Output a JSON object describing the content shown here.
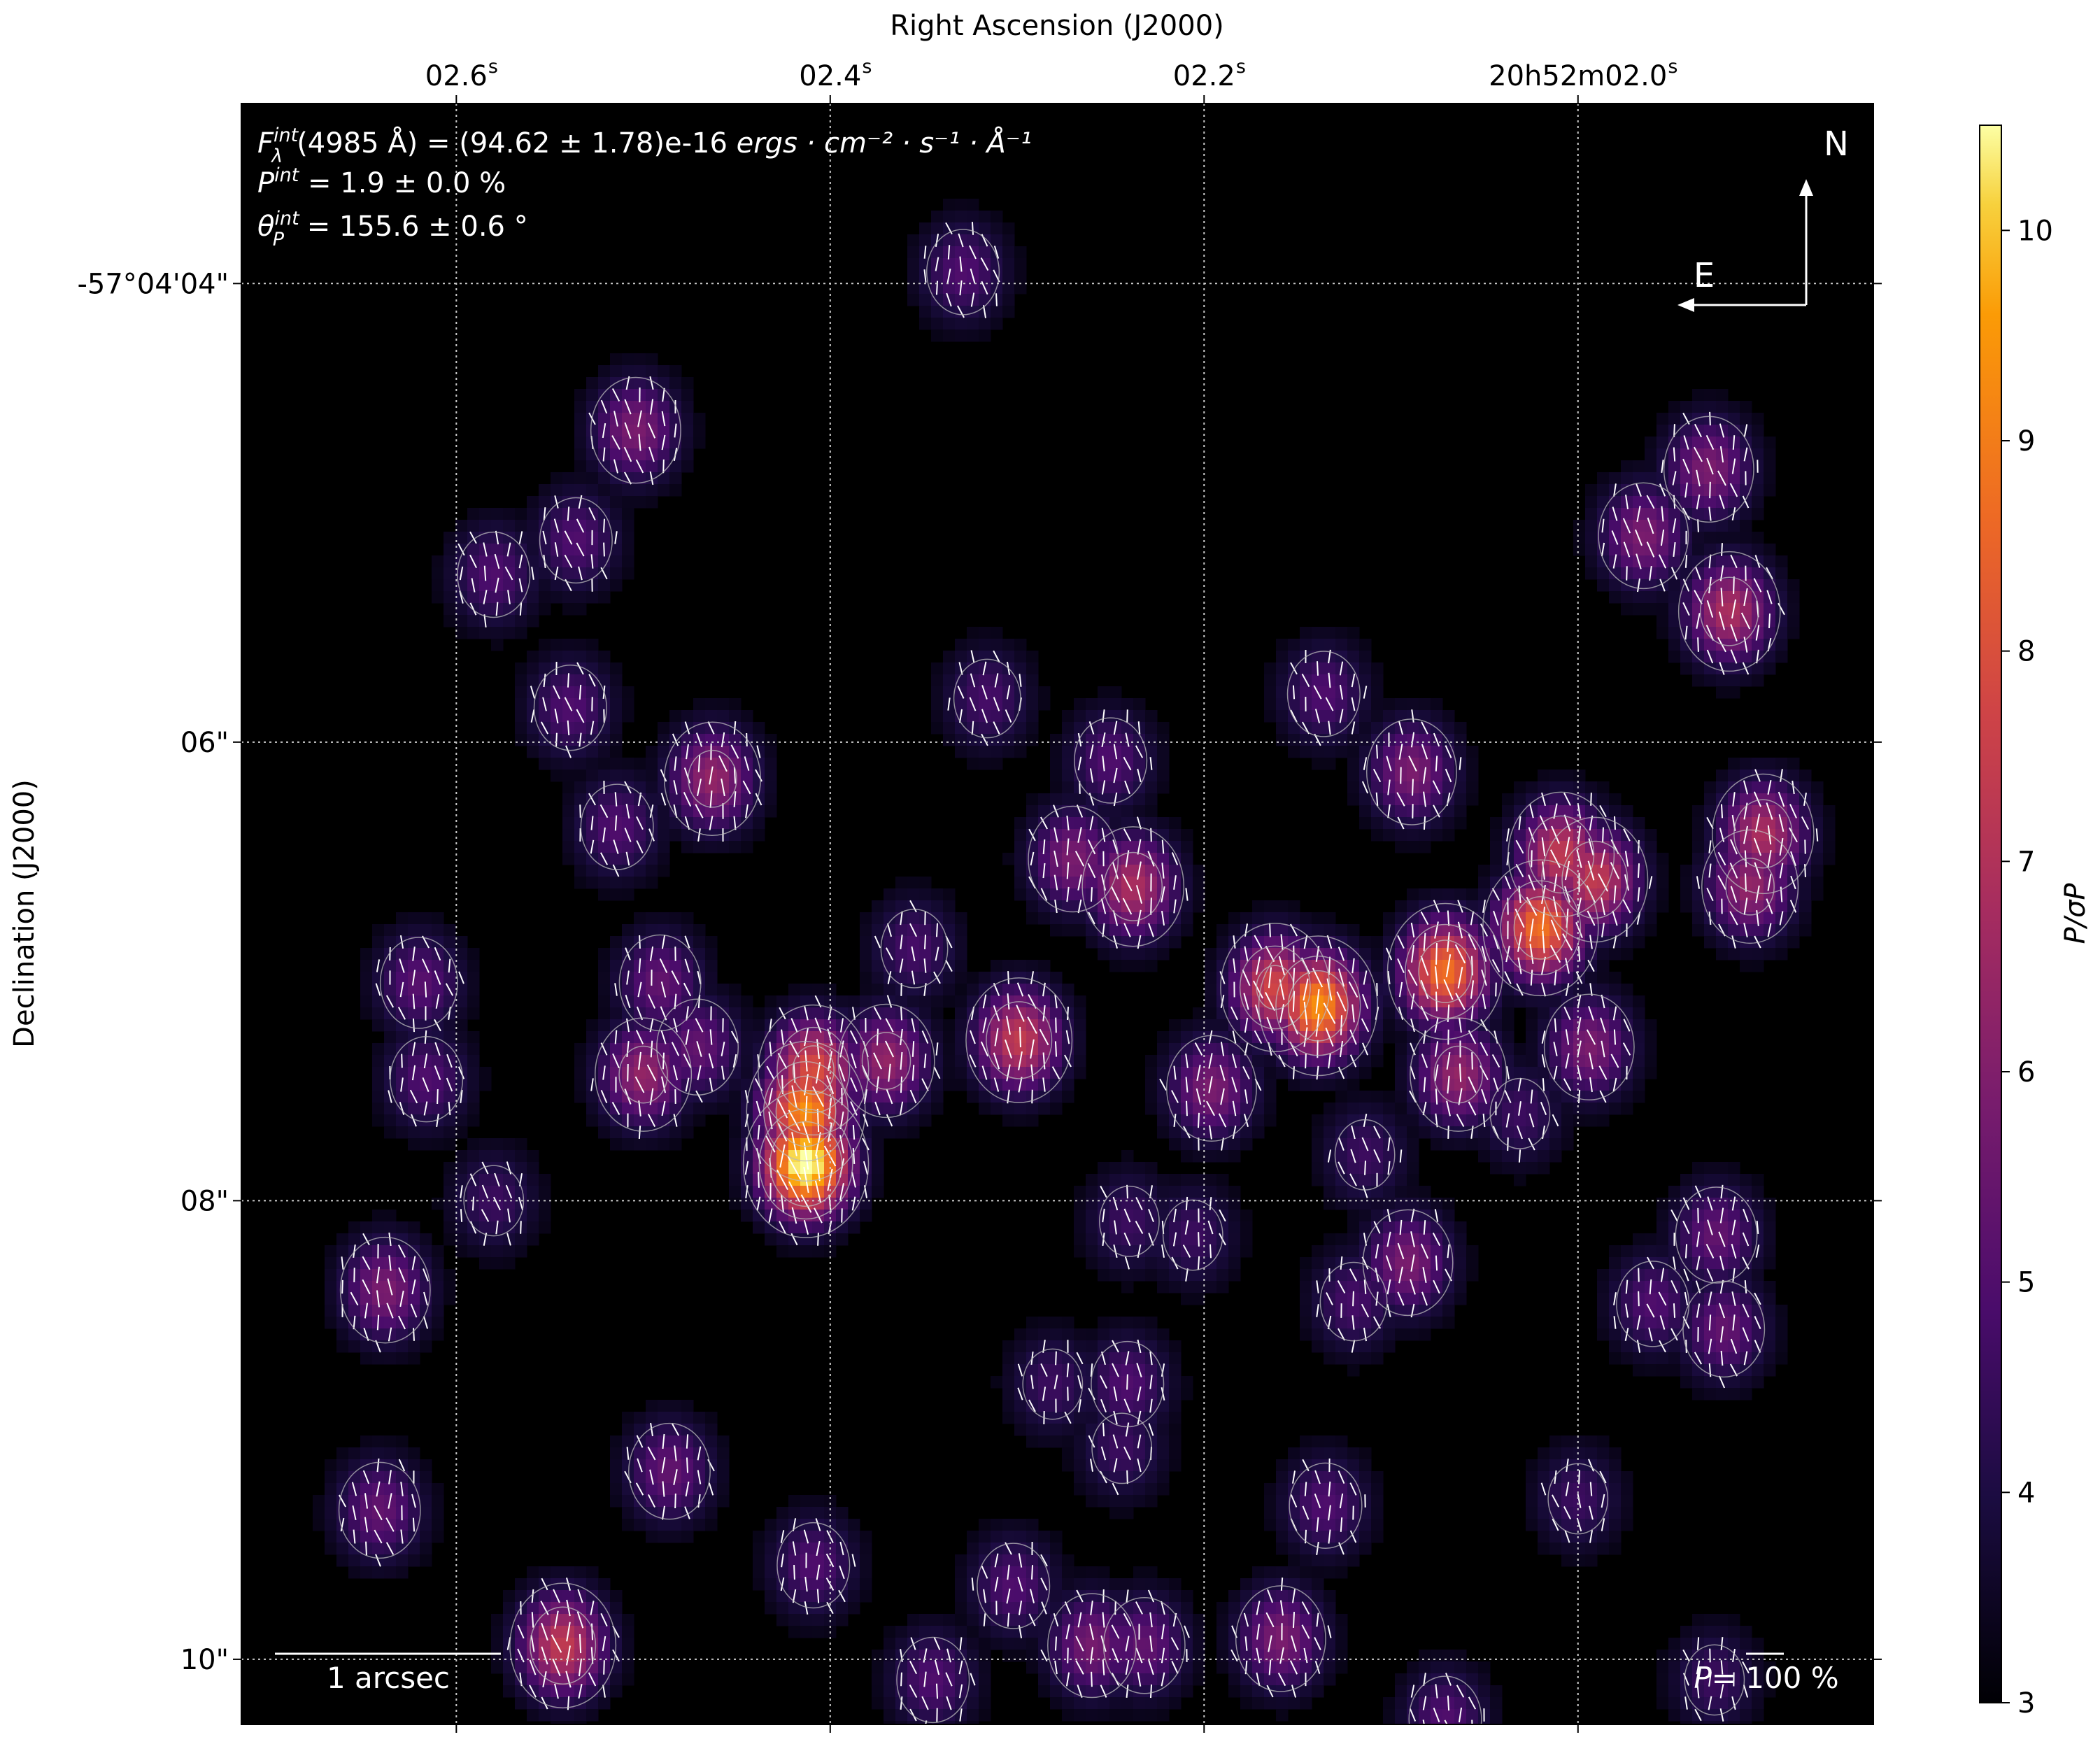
{
  "chart_data": {
    "type": "heatmap",
    "xlabel": "Right Ascension (J2000)",
    "ylabel": "Declination (J2000)",
    "x_ticks": [
      {
        "value": 2.6,
        "label": "02.6",
        "sup": "s"
      },
      {
        "value": 2.4,
        "label": "02.4",
        "sup": "s"
      },
      {
        "value": 2.2,
        "label": "02.2",
        "sup": "s"
      },
      {
        "value": 2.0,
        "label": "20h52m02.0",
        "sup": "s"
      }
    ],
    "y_ticks": [
      {
        "value": 4,
        "label": "-57°04'04\""
      },
      {
        "value": 6,
        "label": "06\""
      },
      {
        "value": 8,
        "label": "08\""
      },
      {
        "value": 10,
        "label": "10\""
      }
    ],
    "xlim": [
      2.715,
      1.842
    ],
    "ylim": [
      3.215,
      10.284
    ],
    "grid": true,
    "colorbar": {
      "label": "P/σP",
      "colormap": "inferno",
      "range": [
        3,
        10.5
      ],
      "ticks": [
        "3",
        "4",
        "5",
        "6",
        "7",
        "8",
        "9",
        "10"
      ]
    },
    "peaks_ra_s_dec_arcsec_snr": [
      [
        2.413,
        7.84,
        10.5
      ],
      [
        2.413,
        7.61,
        9.0
      ],
      [
        2.409,
        7.43,
        7.6
      ],
      [
        2.139,
        7.15,
        9.0
      ],
      [
        2.071,
        7.0,
        8.4
      ],
      [
        2.02,
        6.81,
        8.4
      ],
      [
        2.009,
        6.49,
        7.0
      ],
      [
        1.991,
        6.6,
        7.0
      ],
      [
        2.162,
        7.07,
        7.4
      ],
      [
        2.299,
        7.3,
        7.0
      ],
      [
        2.238,
        6.63,
        6.5
      ],
      [
        2.27,
        6.51,
        5.5
      ],
      [
        2.37,
        7.39,
        6.0
      ],
      [
        2.504,
        4.64,
        5.5
      ],
      [
        2.463,
        6.16,
        6.0
      ],
      [
        1.919,
        5.43,
        6.5
      ],
      [
        1.908,
        6.63,
        6.0
      ],
      [
        1.901,
        6.4,
        6.5
      ],
      [
        2.5,
        7.45,
        6.0
      ],
      [
        2.543,
        9.94,
        7.0
      ],
      [
        2.064,
        7.45,
        6.0
      ],
      [
        2.196,
        7.51,
        5.5
      ],
      [
        1.994,
        7.33,
        5.5
      ],
      [
        2.089,
        6.13,
        5.5
      ],
      [
        2.638,
        8.39,
        5.5
      ],
      [
        1.93,
        4.81,
        5.5
      ],
      [
        1.965,
        5.1,
        5.5
      ],
      [
        2.159,
        9.91,
        5.5
      ],
      [
        2.091,
        8.27,
        5.5
      ],
      [
        1.926,
        8.15,
        5.0
      ],
      [
        1.922,
        8.56,
        5.0
      ],
      [
        2.471,
        7.33,
        5.0
      ],
      [
        2.491,
        7.05,
        5.0
      ],
      [
        2.514,
        6.37,
        4.6
      ],
      [
        2.62,
        7.05,
        4.8
      ],
      [
        2.486,
        9.18,
        5.0
      ],
      [
        2.26,
        9.94,
        5.4
      ],
      [
        2.232,
        9.94,
        5.0
      ],
      [
        2.345,
        10.09,
        4.6
      ],
      [
        2.409,
        9.59,
        4.6
      ],
      [
        2.302,
        9.68,
        4.6
      ],
      [
        2.641,
        9.35,
        5.0
      ],
      [
        2.536,
        5.12,
        4.6
      ],
      [
        2.58,
        5.27,
        4.6
      ],
      [
        2.539,
        5.85,
        4.6
      ],
      [
        2.616,
        7.47,
        4.6
      ],
      [
        2.329,
        3.95,
        4.6
      ],
      [
        2.136,
        5.79,
        4.6
      ],
      [
        2.25,
        6.08,
        4.6
      ],
      [
        2.071,
        10.26,
        4.6
      ],
      [
        2.316,
        5.81,
        4.4
      ],
      [
        2.114,
        7.8,
        4.2
      ],
      [
        2.135,
        9.33,
        4.6
      ],
      [
        2.241,
        8.8,
        4.6
      ],
      [
        2.281,
        8.8,
        4.2
      ],
      [
        1.96,
        8.45,
        4.6
      ],
      [
        1.927,
        10.09,
        4.2
      ],
      [
        2.244,
        9.08,
        4.2
      ],
      [
        2.24,
        8.09,
        4.2
      ],
      [
        2.58,
        8.0,
        4.2
      ],
      [
        2.355,
        6.9,
        4.4
      ],
      [
        2.206,
        8.15,
        4.2
      ],
      [
        2.031,
        7.62,
        4.2
      ],
      [
        2.12,
        8.44,
        4.4
      ],
      [
        2.0,
        9.3,
        4.2
      ]
    ]
  },
  "annotations": {
    "flux_label": "F",
    "flux_sup": "int",
    "flux_sub": "λ",
    "flux_text": "(4985 Å) = (94.62 ± 1.78)e-16 ",
    "flux_units": "ergs · cm⁻² · s⁻¹ · Å⁻¹",
    "pol_label": "P",
    "pol_sup": "int",
    "pol_text": " = 1.9 ± 0.0 %",
    "angle_label": "θ",
    "angle_sup": "int",
    "angle_sub": "P",
    "angle_text": " = 155.6 ± 0.6 °",
    "north": "N",
    "east": "E",
    "scale_bar": "1 arcsec",
    "pol_scale_label": "P",
    "pol_scale_text": "= 100 %"
  },
  "colors": {
    "background": "#000000",
    "contour": "#bbbbbb",
    "vector": "#ffffff",
    "grid": "#cccccc"
  }
}
